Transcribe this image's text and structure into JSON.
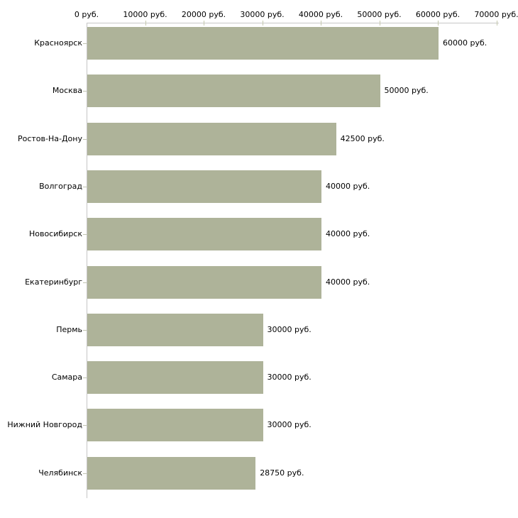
{
  "chart_data": {
    "type": "bar",
    "orientation": "horizontal",
    "title": "",
    "xlabel": "",
    "ylabel": "",
    "unit": "руб.",
    "categories": [
      "Красноярск",
      "Москва",
      "Ростов-На-Дону",
      "Волгоград",
      "Новосибирск",
      "Екатеринбург",
      "Пермь",
      "Самара",
      "Нижний Новгород",
      "Челябинск"
    ],
    "values": [
      60000,
      50000,
      42500,
      40000,
      40000,
      40000,
      30000,
      30000,
      30000,
      28750
    ],
    "value_labels": [
      "60000 руб.",
      "50000 руб.",
      "42500 руб.",
      "40000 руб.",
      "40000 руб.",
      "40000 руб.",
      "30000 руб.",
      "30000 руб.",
      "30000 руб.",
      "28750 руб."
    ],
    "x_ticks": [
      0,
      10000,
      20000,
      30000,
      40000,
      50000,
      60000,
      70000
    ],
    "x_tick_labels": [
      "0 руб.",
      "10000 руб.",
      "20000 руб.",
      "30000 руб.",
      "40000 руб.",
      "50000 руб.",
      "60000 руб.",
      "70000 руб."
    ],
    "xlim": [
      0,
      70000
    ],
    "grid": false,
    "legend": false,
    "value_labels_position": "right-of-bar",
    "colors": {
      "bar": "#aeb399",
      "axis_line": "#c6c6c6",
      "x_tick": "#c5c9ae",
      "category_tick": "#c0c3b0",
      "text": "#000000",
      "background": "#ffffff"
    }
  }
}
